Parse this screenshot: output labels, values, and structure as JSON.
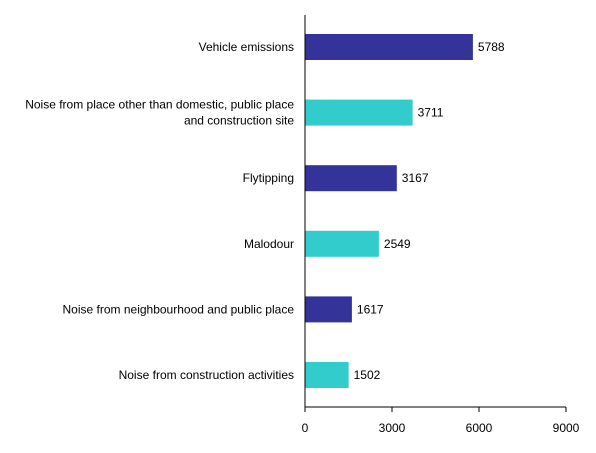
{
  "chart_data": {
    "type": "bar",
    "orientation": "horizontal",
    "categories": [
      [
        "Vehicle emissions"
      ],
      [
        "Noise from place other than domestic, public place",
        "and construction site"
      ],
      [
        "Flytipping"
      ],
      [
        "Malodour"
      ],
      [
        "Noise from neighbourhood and public place"
      ],
      [
        "Noise from construction activities"
      ]
    ],
    "values": [
      5788,
      3711,
      3167,
      2549,
      1617,
      1502
    ],
    "bar_colors": [
      "#333399",
      "#33CCCC",
      "#333399",
      "#33CCCC",
      "#333399",
      "#33CCCC"
    ],
    "xlim": [
      0,
      9000
    ],
    "xticks": [
      0,
      3000,
      6000,
      9000
    ],
    "title": "",
    "xlabel": "",
    "ylabel": "",
    "grid": false,
    "legend": "none"
  }
}
